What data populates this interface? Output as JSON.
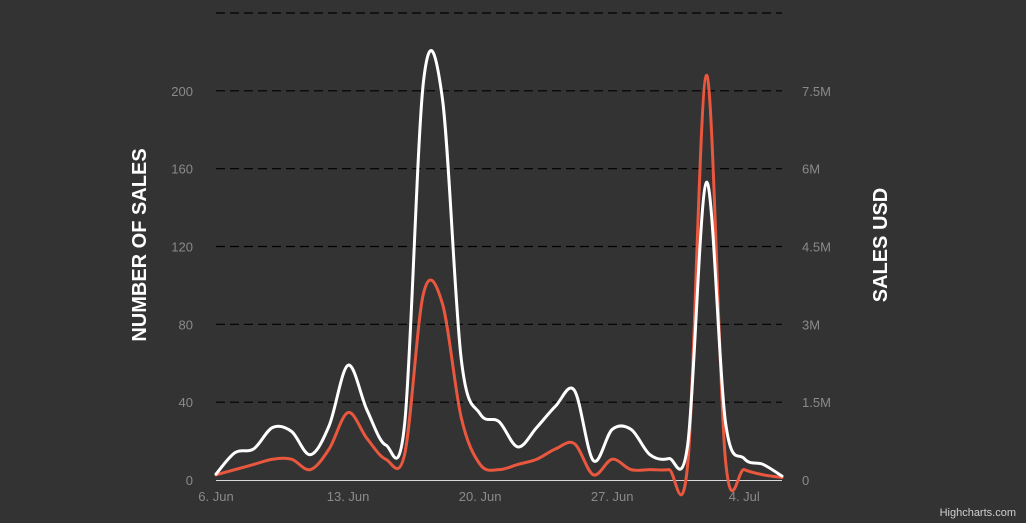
{
  "chart_data": {
    "type": "line",
    "title": "",
    "x_tick_labels": [
      "6. Jun",
      "13. Jun",
      "20. Jun",
      "27. Jun",
      "4. Jul"
    ],
    "x_ticks": [
      "2016-06-06",
      "2016-06-13",
      "2016-06-20",
      "2016-06-27",
      "2016-07-04"
    ],
    "x": [
      "2016-06-06",
      "2016-06-07",
      "2016-06-08",
      "2016-06-09",
      "2016-06-10",
      "2016-06-11",
      "2016-06-12",
      "2016-06-13",
      "2016-06-14",
      "2016-06-15",
      "2016-06-16",
      "2016-06-17",
      "2016-06-18",
      "2016-06-19",
      "2016-06-20",
      "2016-06-21",
      "2016-06-22",
      "2016-06-23",
      "2016-06-24",
      "2016-06-25",
      "2016-06-26",
      "2016-06-27",
      "2016-06-28",
      "2016-06-29",
      "2016-06-30",
      "2016-07-01",
      "2016-07-02",
      "2016-07-03",
      "2016-07-04",
      "2016-07-05",
      "2016-07-06"
    ],
    "xlim": [
      "2016-06-06",
      "2016-07-06"
    ],
    "y_left": {
      "label": "NUMBER OF SALES",
      "ylim": [
        0,
        240
      ],
      "ticks": [
        0,
        40,
        80,
        120,
        160,
        200
      ]
    },
    "y_right": {
      "label": "SALES USD",
      "ylim": [
        0,
        9000000
      ],
      "ticks": [
        0,
        1500000,
        3000000,
        4500000,
        6000000,
        7500000
      ],
      "tick_labels": [
        "0",
        "1.5M",
        "3M",
        "4.5M",
        "6M",
        "7.5M"
      ]
    },
    "series": [
      {
        "color": "#ffffff",
        "axis": "left",
        "values": [
          3,
          14,
          16,
          27,
          25,
          13,
          28,
          59,
          36,
          18,
          29,
          205,
          196,
          62,
          34,
          30,
          17,
          27,
          38,
          46,
          10,
          26,
          26,
          13,
          11,
          18,
          153,
          30,
          11,
          8,
          2
        ]
      },
      {
        "color": "#e9573f",
        "axis": "right",
        "values": [
          100000,
          200000,
          300000,
          400000,
          400000,
          200000,
          600000,
          1300000,
          800000,
          400000,
          500000,
          3600000,
          3400000,
          1200000,
          300000,
          200000,
          300000,
          400000,
          600000,
          700000,
          100000,
          400000,
          200000,
          200000,
          200000,
          300000,
          7800000,
          400000,
          200000,
          100000,
          50000
        ]
      }
    ],
    "grid": true,
    "legend": "none"
  },
  "credits": "Highcharts.com",
  "colors": {
    "background": "#333333",
    "grid": "#000000",
    "tick_label": "#8a8a8a",
    "axis_title": "#ffffff"
  }
}
